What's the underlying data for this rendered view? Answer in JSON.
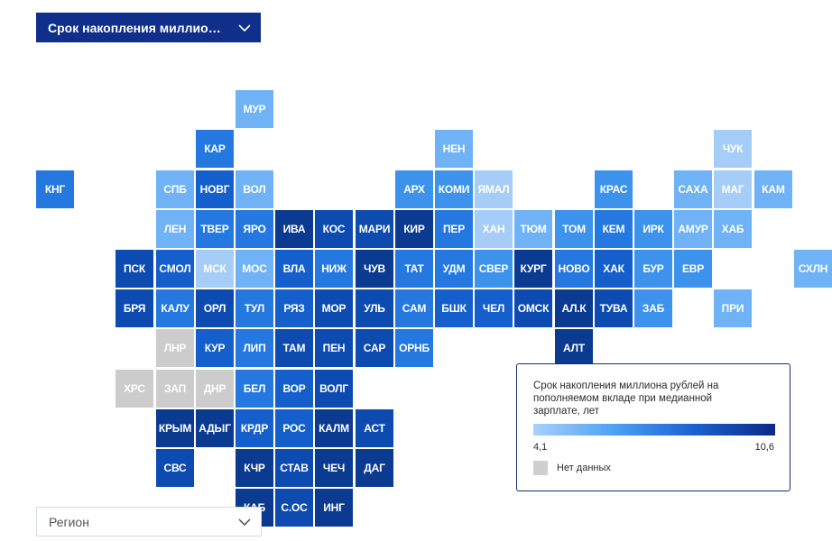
{
  "metric_dropdown": {
    "label": "Срок накопления миллиона р...",
    "icon": "chevron-down-icon"
  },
  "region_dropdown": {
    "label": "Регион",
    "icon": "chevron-down-icon"
  },
  "legend": {
    "title": "Срок накопления миллиона рублей на пополняемом вкладе при медианной зарплате, лет",
    "min": "4,1",
    "max": "10,6",
    "no_data_label": "Нет данных",
    "scale_colors": [
      "#a9d0fb",
      "#4a9ef3",
      "#1d63d3",
      "#0a2a85"
    ],
    "no_data_color": "#cfcfcf"
  },
  "tile_colors": {
    "1": "#a6cdf8",
    "2": "#6fb2f5",
    "3": "#3d92ec",
    "4": "#2478e0",
    "5": "#155fcc",
    "6": "#0e4bb0",
    "7": "#0b3a91",
    "na": "#cccccc"
  },
  "regions": [
    {
      "name": "МУР",
      "row": 1,
      "col": 5,
      "level": 2
    },
    {
      "name": "КАР",
      "row": 2,
      "col": 4,
      "level": 4
    },
    {
      "name": "НЕН",
      "row": 2,
      "col": 10,
      "level": 2
    },
    {
      "name": "ЧУК",
      "row": 2,
      "col": 17,
      "level": 1
    },
    {
      "name": "КНГ",
      "row": 3,
      "col": 0,
      "level": 4
    },
    {
      "name": "СПБ",
      "row": 3,
      "col": 3,
      "level": 2
    },
    {
      "name": "НОВГ",
      "row": 3,
      "col": 4,
      "level": 5
    },
    {
      "name": "ВОЛ",
      "row": 3,
      "col": 5,
      "level": 2
    },
    {
      "name": "АРХ",
      "row": 3,
      "col": 9,
      "level": 3
    },
    {
      "name": "КОМИ",
      "row": 3,
      "col": 10,
      "level": 3
    },
    {
      "name": "ЯМАЛ",
      "row": 3,
      "col": 11,
      "level": 1
    },
    {
      "name": "КРАС",
      "row": 3,
      "col": 14,
      "level": 3
    },
    {
      "name": "САХА",
      "row": 3,
      "col": 16,
      "level": 2
    },
    {
      "name": "МАГ",
      "row": 3,
      "col": 17,
      "level": 1
    },
    {
      "name": "КАМ",
      "row": 3,
      "col": 18,
      "level": 2
    },
    {
      "name": "ЛЕН",
      "row": 4,
      "col": 3,
      "level": 2
    },
    {
      "name": "ТВЕР",
      "row": 4,
      "col": 4,
      "level": 4
    },
    {
      "name": "ЯРО",
      "row": 4,
      "col": 5,
      "level": 4
    },
    {
      "name": "ИВА",
      "row": 4,
      "col": 6,
      "level": 7
    },
    {
      "name": "КОС",
      "row": 4,
      "col": 7,
      "level": 6
    },
    {
      "name": "МАРИ",
      "row": 4,
      "col": 8,
      "level": 6
    },
    {
      "name": "КИР",
      "row": 4,
      "col": 9,
      "level": 7
    },
    {
      "name": "ПЕР",
      "row": 4,
      "col": 10,
      "level": 4
    },
    {
      "name": "ХАН",
      "row": 4,
      "col": 11,
      "level": 1
    },
    {
      "name": "ТЮМ",
      "row": 4,
      "col": 12,
      "level": 2
    },
    {
      "name": "ТОМ",
      "row": 4,
      "col": 13,
      "level": 3
    },
    {
      "name": "КЕМ",
      "row": 4,
      "col": 14,
      "level": 4
    },
    {
      "name": "ИРК",
      "row": 4,
      "col": 15,
      "level": 3
    },
    {
      "name": "АМУР",
      "row": 4,
      "col": 16,
      "level": 2
    },
    {
      "name": "ХАБ",
      "row": 4,
      "col": 17,
      "level": 2
    },
    {
      "name": "ПСК",
      "row": 5,
      "col": 2,
      "level": 6
    },
    {
      "name": "СМОЛ",
      "row": 5,
      "col": 3,
      "level": 5
    },
    {
      "name": "МСК",
      "row": 5,
      "col": 4,
      "level": 1
    },
    {
      "name": "МОС",
      "row": 5,
      "col": 5,
      "level": 2
    },
    {
      "name": "ВЛА",
      "row": 5,
      "col": 6,
      "level": 5
    },
    {
      "name": "НИЖ",
      "row": 5,
      "col": 7,
      "level": 4
    },
    {
      "name": "ЧУВ",
      "row": 5,
      "col": 8,
      "level": 7
    },
    {
      "name": "ТАТ",
      "row": 5,
      "col": 9,
      "level": 4
    },
    {
      "name": "УДМ",
      "row": 5,
      "col": 10,
      "level": 4
    },
    {
      "name": "СВЕР",
      "row": 5,
      "col": 11,
      "level": 3
    },
    {
      "name": "КУРГ",
      "row": 5,
      "col": 12,
      "level": 7
    },
    {
      "name": "НОВО",
      "row": 5,
      "col": 13,
      "level": 4
    },
    {
      "name": "ХАК",
      "row": 5,
      "col": 14,
      "level": 5
    },
    {
      "name": "БУР",
      "row": 5,
      "col": 15,
      "level": 3
    },
    {
      "name": "ЕВР",
      "row": 5,
      "col": 16,
      "level": 3
    },
    {
      "name": "СХЛН",
      "row": 5,
      "col": 19,
      "level": 2
    },
    {
      "name": "БРЯ",
      "row": 6,
      "col": 2,
      "level": 6
    },
    {
      "name": "КАЛУ",
      "row": 6,
      "col": 3,
      "level": 4
    },
    {
      "name": "ОРЛ",
      "row": 6,
      "col": 4,
      "level": 6
    },
    {
      "name": "ТУЛ",
      "row": 6,
      "col": 5,
      "level": 4
    },
    {
      "name": "РЯЗ",
      "row": 6,
      "col": 6,
      "level": 5
    },
    {
      "name": "МОР",
      "row": 6,
      "col": 7,
      "level": 6
    },
    {
      "name": "УЛЬ",
      "row": 6,
      "col": 8,
      "level": 6
    },
    {
      "name": "САМ",
      "row": 6,
      "col": 9,
      "level": 4
    },
    {
      "name": "БШК",
      "row": 6,
      "col": 10,
      "level": 5
    },
    {
      "name": "ЧЕЛ",
      "row": 6,
      "col": 11,
      "level": 5
    },
    {
      "name": "ОМСК",
      "row": 6,
      "col": 12,
      "level": 6
    },
    {
      "name": "АЛ.К",
      "row": 6,
      "col": 13,
      "level": 7
    },
    {
      "name": "ТУВА",
      "row": 6,
      "col": 14,
      "level": 6
    },
    {
      "name": "ЗАБ",
      "row": 6,
      "col": 15,
      "level": 3
    },
    {
      "name": "ПРИ",
      "row": 6,
      "col": 17,
      "level": 2
    },
    {
      "name": "ЛНР",
      "row": 7,
      "col": 3,
      "level": "na"
    },
    {
      "name": "КУР",
      "row": 7,
      "col": 4,
      "level": 5
    },
    {
      "name": "ЛИП",
      "row": 7,
      "col": 5,
      "level": 4
    },
    {
      "name": "ТАМ",
      "row": 7,
      "col": 6,
      "level": 6
    },
    {
      "name": "ПЕН",
      "row": 7,
      "col": 7,
      "level": 6
    },
    {
      "name": "САР",
      "row": 7,
      "col": 8,
      "level": 6
    },
    {
      "name": "ОРНБ",
      "row": 7,
      "col": 9,
      "level": 4
    },
    {
      "name": "АЛТ",
      "row": 7,
      "col": 13,
      "level": 7
    },
    {
      "name": "ХРС",
      "row": 8,
      "col": 2,
      "level": "na"
    },
    {
      "name": "ЗАП",
      "row": 8,
      "col": 3,
      "level": "na"
    },
    {
      "name": "ДНР",
      "row": 8,
      "col": 4,
      "level": "na"
    },
    {
      "name": "БЕЛ",
      "row": 8,
      "col": 5,
      "level": 4
    },
    {
      "name": "ВОР",
      "row": 8,
      "col": 6,
      "level": 5
    },
    {
      "name": "ВОЛГ",
      "row": 8,
      "col": 7,
      "level": 6
    },
    {
      "name": "КРЫМ",
      "row": 9,
      "col": 3,
      "level": 7
    },
    {
      "name": "АДЫГ",
      "row": 9,
      "col": 4,
      "level": 7
    },
    {
      "name": "КРДР",
      "row": 9,
      "col": 5,
      "level": 5
    },
    {
      "name": "РОС",
      "row": 9,
      "col": 6,
      "level": 5
    },
    {
      "name": "КАЛМ",
      "row": 9,
      "col": 7,
      "level": 7
    },
    {
      "name": "АСТ",
      "row": 9,
      "col": 8,
      "level": 6
    },
    {
      "name": "СВС",
      "row": 10,
      "col": 3,
      "level": 6
    },
    {
      "name": "КЧР",
      "row": 10,
      "col": 5,
      "level": 7
    },
    {
      "name": "СТАВ",
      "row": 10,
      "col": 6,
      "level": 6
    },
    {
      "name": "ЧЕЧ",
      "row": 10,
      "col": 7,
      "level": 7
    },
    {
      "name": "ДАГ",
      "row": 10,
      "col": 8,
      "level": 7
    },
    {
      "name": "КАБ",
      "row": 11,
      "col": 5,
      "level": 7
    },
    {
      "name": "С.ОС",
      "row": 11,
      "col": 6,
      "level": 6
    },
    {
      "name": "ИНГ",
      "row": 11,
      "col": 7,
      "level": 7
    }
  ]
}
